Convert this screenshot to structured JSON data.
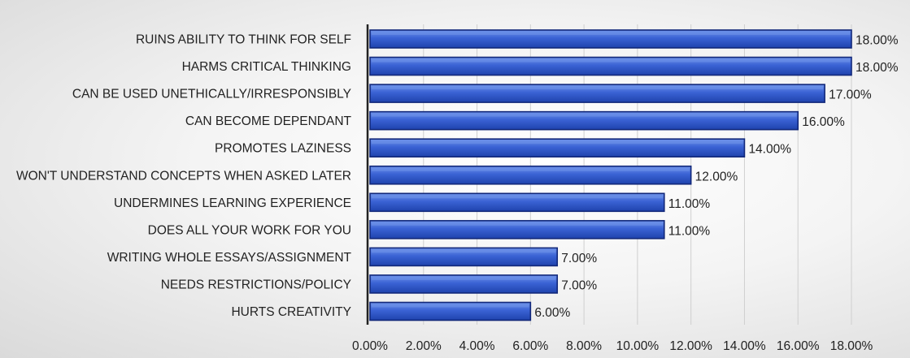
{
  "chart_data": {
    "type": "bar",
    "orientation": "horizontal",
    "categories": [
      "RUINS ABILITY TO THINK FOR SELF",
      "HARMS CRITICAL THINKING",
      "CAN BE USED UNETHICALLY/IRRESPONSIBLY",
      "CAN BECOME DEPENDANT",
      "PROMOTES LAZINESS",
      "WON'T UNDERSTAND CONCEPTS WHEN ASKED LATER",
      "UNDERMINES LEARNING EXPERIENCE",
      "DOES ALL YOUR WORK FOR YOU",
      "WRITING WHOLE ESSAYS/ASSIGNMENT",
      "NEEDS RESTRICTIONS/POLICY",
      "HURTS CREATIVITY"
    ],
    "values": [
      18,
      18,
      17,
      16,
      14,
      12,
      11,
      11,
      7,
      7,
      6
    ],
    "value_labels": [
      "18.00%",
      "18.00%",
      "17.00%",
      "16.00%",
      "14.00%",
      "12.00%",
      "11.00%",
      "11.00%",
      "7.00%",
      "7.00%",
      "6.00%"
    ],
    "x_ticks": [
      "0.00%",
      "2.00%",
      "4.00%",
      "6.00%",
      "8.00%",
      "10.00%",
      "12.00%",
      "14.00%",
      "16.00%",
      "18.00%"
    ],
    "xlim": [
      0,
      18
    ],
    "grid": true,
    "colors": {
      "bar_fill": "#2f56c8",
      "bar_edge": "#12287a",
      "bar_highlight": "#6f93ea",
      "axis": "#222222",
      "grid": "#cfcfcf"
    }
  }
}
